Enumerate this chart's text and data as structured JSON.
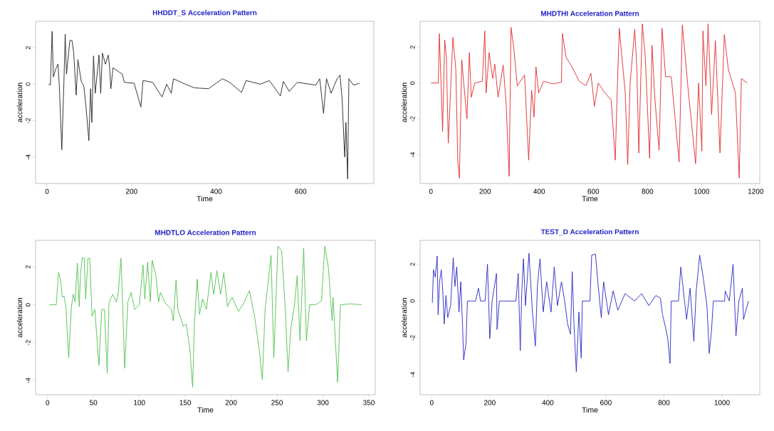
{
  "chart_data": [
    {
      "type": "line",
      "title": "HHDDT_S Acceleration Pattern",
      "xlabel": "Time",
      "ylabel": "acceleration",
      "color": "#222222",
      "xlim": [
        -27,
        773
      ],
      "ylim": [
        -5.45,
        3.45
      ],
      "xticks": [
        0,
        200,
        400,
        600
      ],
      "yticks": [
        -4,
        -2,
        0,
        2
      ],
      "x": [
        4,
        8,
        12,
        15,
        20,
        26,
        29,
        35,
        40,
        43,
        46,
        54,
        59,
        63,
        69,
        73,
        81,
        87,
        92,
        99,
        103,
        106,
        110,
        114,
        123,
        127,
        131,
        138,
        145,
        148,
        151,
        156,
        178,
        183,
        206,
        222,
        227,
        250,
        272,
        283,
        294,
        299,
        327,
        349,
        382,
        415,
        432,
        460,
        471,
        504,
        526,
        552,
        559,
        573,
        592,
        636,
        645,
        654,
        661,
        672,
        686,
        693,
        698,
        704,
        707,
        711,
        714,
        725,
        739
      ],
      "values": [
        0,
        -0.05,
        2.9,
        0.4,
        0.8,
        1.1,
        -0.05,
        -3.6,
        0.15,
        2.75,
        0.55,
        2.4,
        2.4,
        1.75,
        -0.6,
        1.35,
        0.15,
        -0.1,
        -1.2,
        -3.1,
        -0.25,
        -2.1,
        1.55,
        -0.5,
        1.6,
        -0.5,
        1.7,
        1.1,
        1.6,
        0.95,
        -0.25,
        0.9,
        0.55,
        0.1,
        0.05,
        -1.25,
        0.2,
        0.1,
        -0.7,
        0,
        -0.5,
        0.3,
        0,
        -0.2,
        -0.25,
        0.3,
        0.1,
        -0.45,
        0.2,
        0,
        0.2,
        -0.65,
        0.15,
        -0.4,
        0.1,
        -0.05,
        0.3,
        -1.6,
        0.3,
        -0.5,
        0.3,
        0.5,
        -0.8,
        -4.0,
        -2.1,
        -5.2,
        0.3,
        -0.05,
        0.05
      ]
    },
    {
      "type": "line",
      "title": "MHDTHI Acceleration Pattern",
      "xlabel": "Time",
      "ylabel": "acceleration",
      "color": "#e0282a",
      "xlim": [
        -40,
        1215
      ],
      "ylim": [
        -5.6,
        3.44
      ],
      "xticks": [
        0,
        200,
        400,
        600,
        800,
        1000,
        1200
      ],
      "yticks": [
        -4,
        -2,
        0,
        2
      ],
      "x": [
        0,
        27,
        31,
        37,
        43,
        51,
        57,
        64,
        70,
        81,
        92,
        99,
        105,
        114,
        122,
        133,
        142,
        149,
        162,
        190,
        199,
        204,
        215,
        228,
        236,
        248,
        267,
        278,
        289,
        296,
        306,
        319,
        346,
        361,
        372,
        381,
        388,
        398,
        416,
        451,
        482,
        486,
        499,
        521,
        548,
        573,
        591,
        604,
        618,
        643,
        666,
        681,
        688,
        696,
        709,
        718,
        727,
        736,
        753,
        761,
        768,
        781,
        792,
        808,
        817,
        827,
        843,
        854,
        867,
        888,
        917,
        929,
        950,
        978,
        989,
        1001,
        1005,
        1016,
        1024,
        1037,
        1051,
        1068,
        1084,
        1099,
        1125,
        1139,
        1147,
        1169
      ],
      "values": [
        0,
        0,
        2.75,
        0.1,
        -2.7,
        2.4,
        1.45,
        -3.35,
        -1.35,
        2.55,
        0.75,
        -4.3,
        -5.3,
        1.3,
        -0.15,
        -2.0,
        1.7,
        -0.8,
        0,
        0.1,
        2.9,
        -0.55,
        1.7,
        0.25,
        1.05,
        -0.8,
        1.0,
        -1.2,
        -5.2,
        3.1,
        1.95,
        -0.15,
        0.45,
        -4.3,
        -0.4,
        -1.9,
        0.9,
        -0.55,
        0.1,
        -0.05,
        0.05,
        2.75,
        1.45,
        0.9,
        0.1,
        -0.15,
        0.55,
        -1.3,
        0,
        -0.55,
        -0.95,
        -4.3,
        -0.55,
        3.05,
        0.9,
        -0.55,
        -4.55,
        0,
        3.0,
        0.75,
        -3.9,
        3.3,
        1.45,
        -4.2,
        2.1,
        -0.8,
        -3.75,
        3.05,
        0.35,
        0.35,
        -4.4,
        3.25,
        -0.3,
        -4.5,
        0,
        -3.8,
        2.9,
        -0.15,
        3.3,
        -1.75,
        2.35,
        -3.9,
        2.7,
        0.75,
        -0.55,
        -5.3,
        0.25,
        0
      ]
    },
    {
      "type": "line",
      "title": "MHDTLO Acceleration Pattern",
      "xlabel": "Time",
      "ylabel": "acceleration",
      "color": "#4cc24c",
      "xlim": [
        -13,
        357
      ],
      "ylim": [
        -4.75,
        3.4
      ],
      "xticks": [
        0,
        50,
        100,
        150,
        200,
        250,
        300,
        350
      ],
      "yticks": [
        -4,
        -2,
        0,
        2
      ],
      "x": [
        2,
        9.5,
        12,
        14,
        16,
        18,
        20,
        23,
        26,
        28,
        30,
        32.5,
        34.5,
        36,
        38,
        40,
        41.5,
        44,
        46,
        48.5,
        51.5,
        54,
        56,
        59,
        62,
        65,
        67,
        71,
        75,
        77,
        80,
        82,
        84,
        87.5,
        91,
        95,
        100,
        104,
        106,
        109,
        112,
        114,
        118,
        121,
        123,
        128,
        135,
        137,
        140,
        142,
        148,
        151,
        155,
        158,
        160,
        163,
        165.5,
        169,
        173,
        178,
        181,
        184.5,
        188.5,
        192,
        196,
        201,
        208,
        214,
        220,
        226,
        231,
        234,
        237,
        243.5,
        246.5,
        251,
        255,
        259,
        262,
        265,
        269,
        272,
        275,
        279,
        282,
        285.5,
        292,
        298.5,
        302,
        306,
        310,
        311,
        316,
        319,
        330.5,
        342
      ],
      "values": [
        0,
        0,
        1.7,
        1.35,
        0.4,
        0.45,
        -0.1,
        -2.8,
        -0.1,
        0.55,
        0.15,
        2.2,
        -0.1,
        1.7,
        2.5,
        2.45,
        0.3,
        2.45,
        2.45,
        -0.6,
        -0.25,
        -1.9,
        -3.2,
        -0.25,
        -0.25,
        -3.6,
        0.15,
        0.55,
        0.15,
        0.6,
        2.45,
        -0.25,
        -3.35,
        0.15,
        0.65,
        -0.25,
        0,
        2.1,
        0.3,
        2.25,
        0.15,
        2.35,
        1.55,
        0.15,
        0.65,
        0.1,
        -0.25,
        -0.85,
        1.3,
        -0.25,
        -1.15,
        -1.0,
        -2.3,
        -4.35,
        -1.0,
        1.35,
        -0.5,
        0.3,
        -0.25,
        1.7,
        0.55,
        1.8,
        0.55,
        1.7,
        -0.1,
        0.4,
        -0.35,
        0.1,
        0.75,
        -0.75,
        -2.55,
        -3.95,
        -0.25,
        2.6,
        -2.8,
        3.1,
        2.85,
        -0.25,
        -3.55,
        -1.25,
        0,
        1.55,
        -1.9,
        3.0,
        -1.9,
        0,
        0,
        0.2,
        3.1,
        1.95,
        -0.85,
        0.4,
        -4.1,
        0,
        0.05,
        0
      ]
    },
    {
      "type": "line",
      "title": "TEST_D Acceleration Pattern",
      "xlabel": "Time",
      "ylabel": "acceleration",
      "color": "#2626c4",
      "xlim": [
        -40,
        1130
      ],
      "ylim": [
        -5.1,
        3.3
      ],
      "xticks": [
        0,
        200,
        400,
        600,
        800,
        1000
      ],
      "yticks": [
        -4,
        -2,
        0,
        2
      ],
      "x": [
        2,
        6,
        12,
        19,
        22,
        27,
        33,
        38,
        43,
        49,
        55,
        65,
        74,
        80,
        86,
        94,
        100,
        106,
        110,
        118,
        123,
        151,
        161,
        168,
        184,
        192,
        200,
        208,
        223,
        225,
        233,
        290,
        298,
        305,
        310,
        316,
        323,
        335,
        347,
        357,
        364,
        373,
        384,
        396,
        411,
        422,
        433,
        447,
        458,
        468,
        478,
        484,
        490,
        498,
        507,
        515,
        519,
        545,
        551,
        564,
        572,
        584,
        592,
        609,
        625,
        641,
        666,
        699,
        723,
        748,
        772,
        788,
        795,
        805,
        813,
        821,
        825,
        850,
        858,
        868,
        878,
        890,
        903,
        911,
        923,
        935,
        948,
        956,
        964,
        970,
        1009,
        1011,
        1025,
        1038,
        1048,
        1058,
        1070,
        1074,
        1091
      ],
      "values": [
        -0.1,
        1.7,
        1.3,
        2.45,
        -0.75,
        1.05,
        1.7,
        0.55,
        -1.25,
        0.3,
        -0.9,
        -0.25,
        2.35,
        0.8,
        1.85,
        -0.6,
        1.05,
        -1.25,
        -3.2,
        -2.3,
        0,
        0,
        0.7,
        0,
        0,
        2.0,
        -2.05,
        0,
        1.5,
        -1.55,
        0,
        0,
        1.5,
        -2.7,
        0.4,
        2.3,
        -0.25,
        2.6,
        -0.6,
        -2.45,
        0.8,
        2.3,
        -0.6,
        1.05,
        -0.6,
        1.85,
        -0.25,
        1.05,
        0,
        -1.25,
        -1.8,
        1.6,
        -1.25,
        -3.85,
        -0.6,
        -3.1,
        0,
        0,
        2.5,
        2.55,
        1.05,
        -0.9,
        1.05,
        -0.75,
        0.55,
        -0.5,
        0.4,
        0,
        0.4,
        -0.25,
        0.3,
        0.15,
        -0.75,
        -1.4,
        -2.05,
        -3.4,
        0,
        0,
        1.85,
        0.4,
        -1.0,
        0.7,
        -2.2,
        0.55,
        2.5,
        1.3,
        -0.25,
        -2.85,
        -1.55,
        0,
        0,
        0.55,
        0,
        2.0,
        -1.9,
        0,
        0.7,
        -1.0,
        0
      ]
    }
  ]
}
